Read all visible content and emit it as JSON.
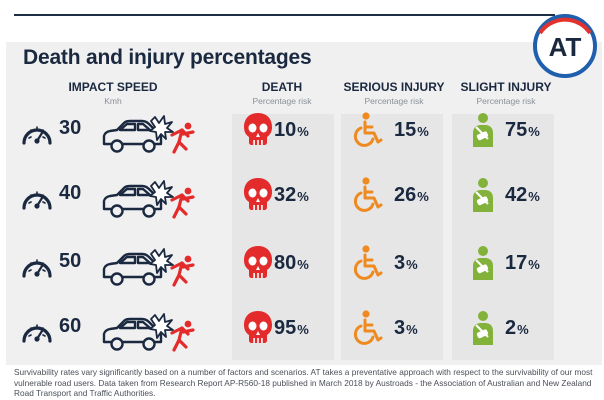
{
  "title": "Death and injury percentages",
  "logo_text": "AT",
  "headers": {
    "impact": {
      "title": "IMPACT SPEED",
      "sub": "Kmh"
    },
    "death": {
      "title": "DEATH",
      "sub": "Percentage risk"
    },
    "serious": {
      "title": "SERIOUS INJURY",
      "sub": "Percentage risk"
    },
    "slight": {
      "title": "SLIGHT INJURY",
      "sub": "Percentage risk"
    }
  },
  "percent_sign": "%",
  "rows": [
    {
      "speed": "30",
      "death": "10",
      "serious": "15",
      "slight": "75"
    },
    {
      "speed": "40",
      "death": "32",
      "serious": "26",
      "slight": "42"
    },
    {
      "speed": "50",
      "death": "80",
      "serious": "3",
      "slight": "17"
    },
    {
      "speed": "60",
      "death": "95",
      "serious": "3",
      "slight": "2"
    }
  ],
  "footnote": "Survivability rates vary significantly based on a number of factors and scenarios. AT takes a preventative approach with respect to the survivability of our most vulnerable road users. Data taken from Research Report AP-R560-18 published in March 2018 by Austroads - the Association of Australian and New Zealand Road Transport and Traffic Authorities.",
  "colors": {
    "navy": "#1b2940",
    "death_red": "#e32b2b",
    "serious_orange": "#ee8a1f",
    "slight_green": "#83b23a",
    "logo_blue": "#1f5fae",
    "logo_red": "#e2322d"
  },
  "icons": {
    "speed": "speedometer-icon",
    "crash": "car-crash-icon",
    "death": "skull-icon",
    "serious": "wheelchair-icon",
    "slight": "arm-sling-icon"
  }
}
